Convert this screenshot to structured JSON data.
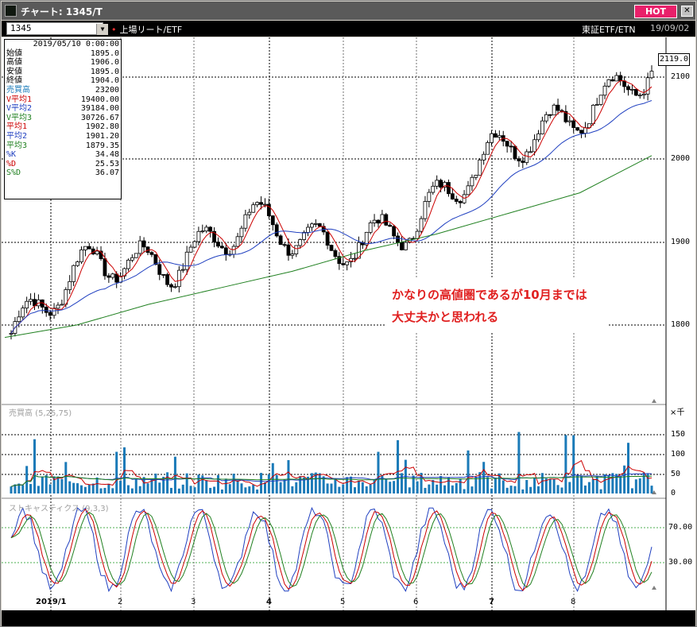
{
  "window": {
    "title": "チャート: 1345/T",
    "hot_label": "HOT",
    "close_label": "✕"
  },
  "toolbar": {
    "code": "1345",
    "exchange": "上場リート/ETF",
    "market": "東証ETF/ETN",
    "date": "19/09/02"
  },
  "legend": {
    "date": "2019/05/10 0:00:00",
    "rows": [
      {
        "label": "始値",
        "value": "1895.0",
        "color": "#000"
      },
      {
        "label": "高値",
        "value": "1906.0",
        "color": "#000"
      },
      {
        "label": "安値",
        "value": "1895.0",
        "color": "#000"
      },
      {
        "label": "終値",
        "value": "1904.0",
        "color": "#000"
      },
      {
        "label": "売買高",
        "value": "23200",
        "color": "#1a7ab8"
      },
      {
        "label": "V平均1",
        "value": "19400.00",
        "color": "#cc0000"
      },
      {
        "label": "V平均2",
        "value": "39184.00",
        "color": "#2040c0"
      },
      {
        "label": "V平均3",
        "value": "30726.67",
        "color": "#208020"
      },
      {
        "label": "平均1",
        "value": "1902.80",
        "color": "#cc0000"
      },
      {
        "label": "平均2",
        "value": "1901.20",
        "color": "#2040c0"
      },
      {
        "label": "平均3",
        "value": "1879.35",
        "color": "#208020"
      },
      {
        "label": "%K",
        "value": "34.48",
        "color": "#2040c0"
      },
      {
        "label": "%D",
        "value": "25.53",
        "color": "#cc0000"
      },
      {
        "label": "S%D",
        "value": "36.07",
        "color": "#208020"
      }
    ]
  },
  "note": {
    "line1": "かなりの高値圏であるが10月までは",
    "line2": "大丈夫かと思われる"
  },
  "last_price": "2119.0",
  "price_axis": [
    "2100",
    "2000",
    "1900",
    "1800"
  ],
  "volume_axis": [
    "150",
    "100",
    "50",
    "0"
  ],
  "volume_unit": "×千",
  "stoch_axis": [
    "70.00",
    "30.00"
  ],
  "indicators": {
    "volume": "売買高 (5,25,75)",
    "stoch": "ストキャスティクス (9,3,3)"
  },
  "x_labels": [
    "2019/1",
    "2",
    "3",
    "4",
    "5",
    "6",
    "7",
    "8"
  ],
  "colors": {
    "up": "#000",
    "ma1": "#cc0000",
    "ma2": "#2040c0",
    "ma3": "#208020",
    "volume": "#1a7ab8"
  },
  "chart_data": {
    "type": "candlestick",
    "ylim": [
      1740,
      2140
    ],
    "monthly_close": [
      1790,
      1880,
      1870,
      1930,
      1890,
      1920,
      2010,
      2050,
      2110
    ],
    "ma3_points": [
      1785,
      1800,
      1825,
      1845,
      1865,
      1890,
      1910,
      1935,
      1960,
      2005
    ],
    "volume_ylim": [
      0,
      200
    ]
  }
}
